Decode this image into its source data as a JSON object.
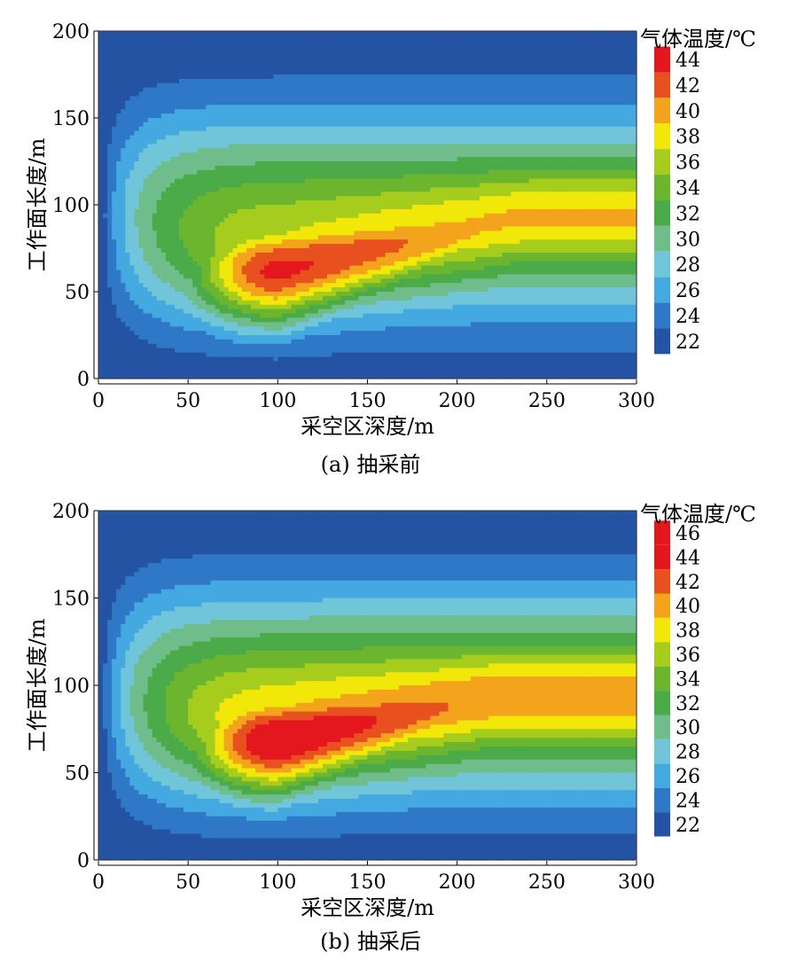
{
  "chart_data": [
    {
      "type": "heatmap",
      "subtype": "filled-contour",
      "caption": "(a)  抽采前",
      "xlabel": "采空区深度/m",
      "ylabel": "工作面长度/m",
      "xlim": [
        0,
        300
      ],
      "ylim": [
        0,
        200
      ],
      "xticks": [
        "0",
        "50",
        "100",
        "150",
        "200",
        "250",
        "300"
      ],
      "yticks": [
        "0",
        "50",
        "100",
        "150",
        "200"
      ],
      "colorbar": {
        "title": "气体温度/℃",
        "tick_labels": [
          "44",
          "42",
          "40",
          "38",
          "36",
          "34",
          "32",
          "30",
          "28",
          "26",
          "24",
          "22"
        ],
        "levels": [
          22,
          24,
          26,
          28,
          30,
          32,
          34,
          36,
          38,
          40,
          42,
          44
        ],
        "colors": [
          "#2553a3",
          "#2f78c8",
          "#44a9e0",
          "#70c6d8",
          "#6fbd8a",
          "#4aab48",
          "#6cb62f",
          "#a6cc1d",
          "#f1e80a",
          "#f4a41c",
          "#e8501f",
          "#e4161e"
        ]
      },
      "field": {
        "center": [
          100,
          62
        ],
        "peak": 45,
        "floor": 22,
        "ridge_axis": [
          240,
          93
        ]
      }
    },
    {
      "type": "heatmap",
      "subtype": "filled-contour",
      "caption": "(b)  抽采后",
      "xlabel": "采空区深度/m",
      "ylabel": "工作面长度/m",
      "xlim": [
        0,
        300
      ],
      "ylim": [
        0,
        200
      ],
      "xticks": [
        "0",
        "50",
        "100",
        "150",
        "200",
        "250",
        "300"
      ],
      "yticks": [
        "0",
        "50",
        "100",
        "150",
        "200"
      ],
      "colorbar": {
        "title": "气体温度/℃",
        "tick_labels": [
          "46",
          "44",
          "42",
          "40",
          "38",
          "36",
          "34",
          "32",
          "30",
          "28",
          "26",
          "24",
          "22"
        ],
        "levels": [
          22,
          24,
          26,
          28,
          30,
          32,
          34,
          36,
          38,
          40,
          42,
          44,
          46
        ],
        "colors": [
          "#2553a3",
          "#2f78c8",
          "#44a9e0",
          "#70c6d8",
          "#6fbd8a",
          "#4aab48",
          "#6cb62f",
          "#a6cc1d",
          "#f1e80a",
          "#f4a41c",
          "#e8501f",
          "#e4161e",
          "#e4161e"
        ]
      },
      "field": {
        "center": [
          100,
          68
        ],
        "peak": 47,
        "floor": 22,
        "ridge_axis": [
          220,
          93
        ]
      }
    }
  ]
}
